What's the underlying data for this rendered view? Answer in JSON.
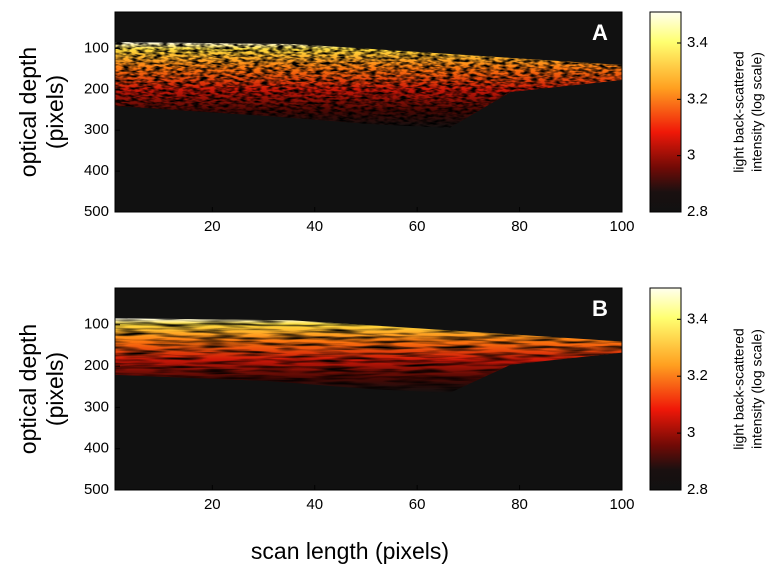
{
  "chart_data": [
    {
      "type": "heatmap",
      "colormap": "hot",
      "panel_label": "A",
      "xlim": [
        1,
        100
      ],
      "xticks": [
        20,
        40,
        60,
        80,
        100
      ],
      "ylim": [
        11,
        500
      ],
      "y_inverted": true,
      "yticks": [
        100,
        200,
        300,
        400,
        500
      ],
      "ylabel": [
        "optical depth",
        "(pixels)"
      ],
      "colorbar": {
        "lim": [
          2.8,
          3.51
        ],
        "ticks": [
          2.8,
          3,
          3.2,
          3.4
        ],
        "label": [
          "light back-scattered",
          "intensity (log scale)"
        ]
      }
    },
    {
      "type": "heatmap",
      "colormap": "hot",
      "panel_label": "B",
      "xlim": [
        1,
        100
      ],
      "xticks": [
        20,
        40,
        60,
        80,
        100
      ],
      "ylim": [
        11,
        500
      ],
      "y_inverted": true,
      "yticks": [
        100,
        200,
        300,
        400,
        500
      ],
      "ylabel": [
        "optical depth",
        "(pixels)"
      ],
      "xlabel": "scan length (pixels)",
      "colorbar": {
        "lim": [
          2.8,
          3.51
        ],
        "ticks": [
          2.8,
          3,
          3.2,
          3.4
        ],
        "label": [
          "light back-scattered",
          "intensity (log scale)"
        ]
      }
    }
  ]
}
